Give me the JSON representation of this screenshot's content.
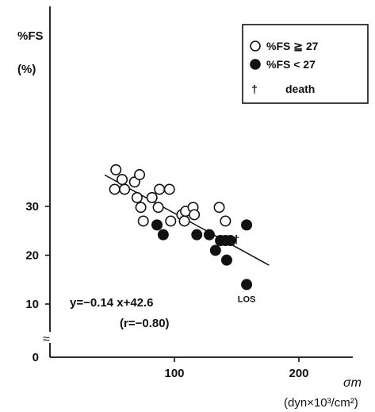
{
  "chart_data": {
    "type": "scatter",
    "ylabel": "%FS",
    "ylabel_unit": "(%)",
    "xlabel": "σm",
    "xlabel_unit": "(dyn×10³/cm²)",
    "xlim": [
      0,
      250
    ],
    "ylim": [
      0,
      38
    ],
    "y_axis_break": true,
    "x_ticks": [
      100,
      200
    ],
    "y_ticks": [
      0,
      10,
      20,
      30
    ],
    "series": [
      {
        "name": "%FS ≧ 27",
        "marker": "open-circle",
        "points": [
          [
            53,
            37.5
          ],
          [
            58,
            35.5
          ],
          [
            52,
            33.5
          ],
          [
            60,
            33.5
          ],
          [
            68,
            35.0
          ],
          [
            72,
            36.5
          ],
          [
            70,
            31.8
          ],
          [
            73,
            29.8
          ],
          [
            75,
            27.0
          ],
          [
            82,
            31.8
          ],
          [
            87,
            29.8
          ],
          [
            88,
            33.5
          ],
          [
            96,
            33.5
          ],
          [
            97,
            27.0
          ],
          [
            106,
            28.3
          ],
          [
            108,
            27.0
          ],
          [
            109,
            29.0
          ],
          [
            115,
            29.8
          ],
          [
            116,
            28.3
          ],
          [
            136,
            29.8
          ],
          [
            141,
            27.0
          ]
        ]
      },
      {
        "name": "%FS < 27",
        "marker": "filled-circle",
        "points": [
          [
            86,
            26.2
          ],
          [
            91,
            24.2
          ],
          [
            118,
            24.2
          ],
          [
            128,
            24.2
          ],
          [
            133,
            21.0
          ],
          [
            137,
            23.0
          ],
          [
            141,
            23.0
          ],
          [
            145,
            23.0
          ],
          [
            142,
            19.0
          ],
          [
            158,
            26.2
          ],
          [
            158,
            14.0
          ]
        ]
      }
    ],
    "death_marker": {
      "symbol": "†",
      "label": "death",
      "x": 149,
      "y": 23.2
    },
    "regression": {
      "equation": "y=−0.14 x+42.6",
      "r_text": "(r=−0.80)",
      "x_range": [
        44,
        176
      ]
    },
    "annotations": [
      {
        "text": "LOS",
        "x": 158,
        "y": 14.0
      }
    ],
    "legend": {
      "position": "top-right",
      "entries": [
        {
          "label": "%FS ≧ 27",
          "symbol": "open-circle"
        },
        {
          "label": "%FS < 27",
          "symbol": "filled-circle"
        },
        {
          "label": "death",
          "symbol": "dagger"
        }
      ]
    },
    "axis_break_symbol": "≈"
  }
}
